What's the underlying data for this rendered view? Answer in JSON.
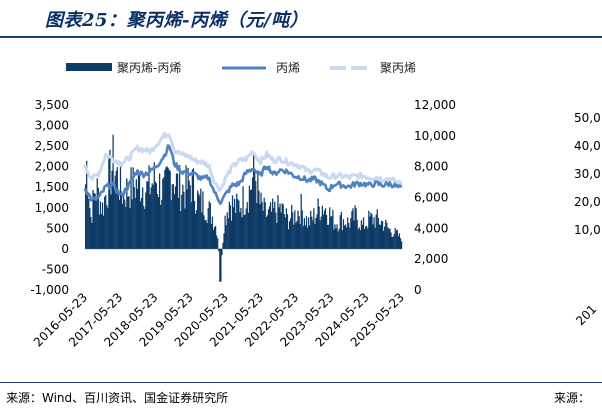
{
  "title": "图表25：聚丙烯-丙烯（元/吨）",
  "source": "来源：Wind、百川资讯、国金证券研究所",
  "source_right": "来源：",
  "colors": {
    "spread": "#0d3b66",
    "propylene": "#4f82c2",
    "polypropylene": "#c9daf0",
    "title": "#0b2f66"
  },
  "chart_data": {
    "type": "bar+line",
    "title": "图表25：聚丙烯-丙烯（元/吨）",
    "legend": [
      "聚丙烯-丙烯",
      "丙烯",
      "聚丙烯"
    ],
    "legend_position": "top",
    "x_ticks": [
      "2016-05-23",
      "2017-05-23",
      "2018-05-23",
      "2019-05-23",
      "2020-05-23",
      "2021-05-23",
      "2022-05-23",
      "2023-05-23",
      "2024-05-23",
      "2025-05-23"
    ],
    "y_left": {
      "label": "",
      "lim": [
        -1000,
        3500
      ],
      "ticks": [
        "3,500",
        "3,000",
        "2,500",
        "2,000",
        "1,500",
        "1,000",
        "500",
        "0",
        "-500",
        "-1,000"
      ]
    },
    "y_right": {
      "label": "",
      "lim": [
        0,
        12000
      ],
      "ticks": [
        "12,000",
        "10,000",
        "8,000",
        "6,000",
        "4,000",
        "2,000",
        "0"
      ]
    },
    "series": [
      {
        "name": "聚丙烯-丙烯",
        "type": "bar",
        "axis": "left",
        "anchors": [
          [
            2016.39,
            1500
          ],
          [
            2016.45,
            2500
          ],
          [
            2016.55,
            800
          ],
          [
            2016.7,
            1700
          ],
          [
            2016.9,
            1100
          ],
          [
            2017.2,
            2300
          ],
          [
            2017.5,
            1500
          ],
          [
            2017.8,
            1700
          ],
          [
            2018.0,
            1800
          ],
          [
            2018.2,
            1600
          ],
          [
            2018.45,
            1900
          ],
          [
            2018.7,
            1500
          ],
          [
            2018.9,
            2100
          ],
          [
            2019.1,
            1700
          ],
          [
            2019.3,
            1600
          ],
          [
            2019.5,
            1800
          ],
          [
            2019.7,
            1300
          ],
          [
            2019.9,
            1200
          ],
          [
            2020.1,
            900
          ],
          [
            2020.25,
            500
          ],
          [
            2020.35,
            -800
          ],
          [
            2020.45,
            700
          ],
          [
            2020.6,
            1300
          ],
          [
            2020.8,
            1100
          ],
          [
            2021.0,
            1300
          ],
          [
            2021.2,
            1600
          ],
          [
            2021.35,
            2100
          ],
          [
            2021.5,
            1200
          ],
          [
            2021.7,
            900
          ],
          [
            2021.9,
            1000
          ],
          [
            2022.1,
            1100
          ],
          [
            2022.3,
            800
          ],
          [
            2022.5,
            900
          ],
          [
            2022.7,
            1100
          ],
          [
            2022.9,
            700
          ],
          [
            2023.1,
            900
          ],
          [
            2023.3,
            1200
          ],
          [
            2023.5,
            1000
          ],
          [
            2023.7,
            700
          ],
          [
            2023.9,
            800
          ],
          [
            2024.1,
            700
          ],
          [
            2024.3,
            900
          ],
          [
            2024.5,
            600
          ],
          [
            2024.7,
            800
          ],
          [
            2024.9,
            800
          ],
          [
            2025.1,
            700
          ],
          [
            2025.3,
            500
          ],
          [
            2025.5,
            400
          ],
          [
            2025.6,
            300
          ]
        ]
      },
      {
        "name": "丙烯",
        "type": "line",
        "axis": "right",
        "anchors": [
          [
            2016.39,
            6600
          ],
          [
            2016.6,
            5800
          ],
          [
            2016.8,
            6000
          ],
          [
            2017.0,
            6700
          ],
          [
            2017.2,
            6800
          ],
          [
            2017.45,
            6100
          ],
          [
            2017.7,
            6900
          ],
          [
            2017.9,
            7700
          ],
          [
            2018.1,
            7500
          ],
          [
            2018.3,
            7700
          ],
          [
            2018.5,
            8100
          ],
          [
            2018.7,
            8700
          ],
          [
            2018.85,
            9400
          ],
          [
            2019.0,
            8200
          ],
          [
            2019.2,
            7700
          ],
          [
            2019.4,
            7600
          ],
          [
            2019.6,
            7500
          ],
          [
            2019.8,
            7200
          ],
          [
            2020.0,
            7300
          ],
          [
            2020.2,
            6200
          ],
          [
            2020.35,
            5700
          ],
          [
            2020.5,
            6200
          ],
          [
            2020.7,
            6800
          ],
          [
            2020.9,
            6900
          ],
          [
            2021.1,
            7600
          ],
          [
            2021.3,
            7900
          ],
          [
            2021.5,
            7400
          ],
          [
            2021.7,
            8100
          ],
          [
            2021.9,
            7500
          ],
          [
            2022.1,
            7800
          ],
          [
            2022.3,
            7700
          ],
          [
            2022.5,
            7400
          ],
          [
            2022.7,
            7300
          ],
          [
            2022.9,
            7100
          ],
          [
            2023.1,
            7200
          ],
          [
            2023.3,
            6900
          ],
          [
            2023.5,
            6500
          ],
          [
            2023.7,
            6900
          ],
          [
            2023.9,
            6800
          ],
          [
            2024.1,
            6700
          ],
          [
            2024.3,
            6900
          ],
          [
            2024.5,
            6900
          ],
          [
            2024.7,
            6800
          ],
          [
            2024.9,
            6900
          ],
          [
            2025.1,
            6800
          ],
          [
            2025.3,
            6900
          ],
          [
            2025.5,
            6700
          ],
          [
            2025.6,
            6600
          ]
        ]
      },
      {
        "name": "聚丙烯",
        "type": "line",
        "axis": "right",
        "anchors": [
          [
            2016.39,
            8000
          ],
          [
            2016.6,
            7200
          ],
          [
            2016.8,
            7600
          ],
          [
            2017.0,
            8800
          ],
          [
            2017.2,
            8500
          ],
          [
            2017.45,
            8200
          ],
          [
            2017.7,
            8600
          ],
          [
            2017.9,
            9200
          ],
          [
            2018.1,
            9100
          ],
          [
            2018.3,
            9000
          ],
          [
            2018.5,
            9500
          ],
          [
            2018.7,
            10000
          ],
          [
            2018.85,
            10200
          ],
          [
            2019.0,
            9100
          ],
          [
            2019.2,
            8800
          ],
          [
            2019.4,
            8700
          ],
          [
            2019.6,
            8400
          ],
          [
            2019.8,
            8300
          ],
          [
            2020.0,
            8100
          ],
          [
            2020.2,
            6900
          ],
          [
            2020.35,
            6500
          ],
          [
            2020.5,
            7300
          ],
          [
            2020.7,
            8000
          ],
          [
            2020.9,
            8400
          ],
          [
            2021.1,
            8500
          ],
          [
            2021.3,
            9000
          ],
          [
            2021.5,
            8300
          ],
          [
            2021.7,
            8800
          ],
          [
            2021.9,
            8400
          ],
          [
            2022.1,
            8500
          ],
          [
            2022.3,
            8300
          ],
          [
            2022.5,
            8200
          ],
          [
            2022.7,
            8000
          ],
          [
            2022.9,
            7700
          ],
          [
            2023.1,
            7800
          ],
          [
            2023.3,
            7600
          ],
          [
            2023.5,
            7300
          ],
          [
            2023.7,
            7400
          ],
          [
            2023.9,
            7400
          ],
          [
            2024.1,
            7300
          ],
          [
            2024.3,
            7400
          ],
          [
            2024.5,
            7400
          ],
          [
            2024.7,
            7300
          ],
          [
            2024.9,
            7300
          ],
          [
            2025.1,
            7200
          ],
          [
            2025.3,
            7200
          ],
          [
            2025.5,
            7000
          ],
          [
            2025.6,
            6900
          ]
        ]
      }
    ]
  },
  "cutoff_panel": {
    "ticks": [
      "50,0",
      "40,0",
      "30,0",
      "20,0",
      "10,0"
    ],
    "x_tick": "201"
  }
}
